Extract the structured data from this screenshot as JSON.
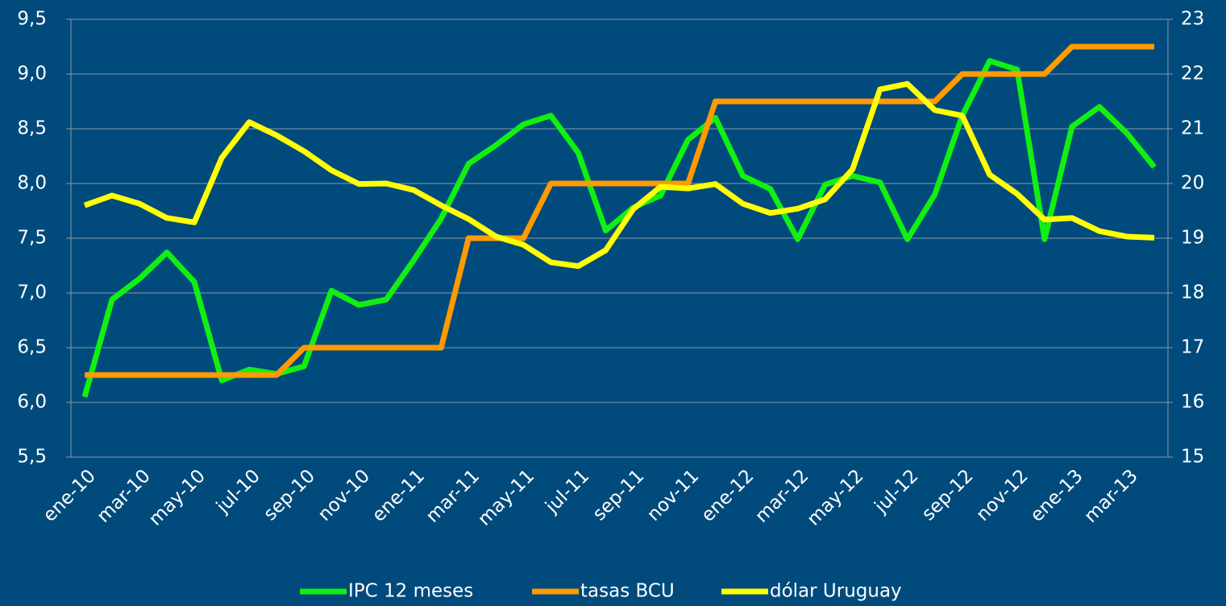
{
  "chart_data": {
    "type": "line",
    "categories": [
      "ene-10",
      null,
      "mar-10",
      null,
      "may-10",
      null,
      "jul-10",
      null,
      "sep-10",
      null,
      "nov-10",
      null,
      "ene-11",
      null,
      "mar-11",
      null,
      "may-11",
      null,
      "jul-11",
      null,
      "sep-11",
      null,
      "nov-11",
      null,
      "ene-12",
      null,
      "mar-12",
      null,
      "may-12",
      null,
      "jul-12",
      null,
      "sep-12",
      null,
      "nov-12",
      null,
      "ene-13",
      null,
      "mar-13",
      null
    ],
    "series": [
      {
        "name": "IPC 12 meses",
        "color": "#11f011",
        "axis": "y",
        "values": [
          6.05,
          6.94,
          7.13,
          7.37,
          7.1,
          6.2,
          6.3,
          6.26,
          6.33,
          7.02,
          6.89,
          6.94,
          7.3,
          7.68,
          8.18,
          8.35,
          8.54,
          8.62,
          8.28,
          7.57,
          7.78,
          7.89,
          8.4,
          8.6,
          8.07,
          7.95,
          7.49,
          7.99,
          8.07,
          8.01,
          7.49,
          7.9,
          8.62,
          9.12,
          9.04,
          7.49,
          8.52,
          8.7,
          8.46,
          8.15
        ]
      },
      {
        "name": "tasas BCU",
        "color": "#ff9a00",
        "axis": "y2",
        "values": [
          16.5,
          16.5,
          16.5,
          16.5,
          16.5,
          16.5,
          16.5,
          16.5,
          17,
          17,
          17,
          17,
          17,
          17,
          19,
          19,
          19,
          20,
          20,
          20,
          20,
          20,
          20,
          21.5,
          21.5,
          21.5,
          21.5,
          21.5,
          21.5,
          21.5,
          21.5,
          21.5,
          22,
          22,
          22,
          22,
          22.5,
          22.5,
          22.5,
          22.5
        ]
      },
      {
        "name": "dólar Uruguay",
        "color": "#ffff00",
        "axis": "y2",
        "values": [
          19.6,
          19.78,
          19.63,
          19.37,
          19.29,
          20.47,
          21.12,
          20.88,
          20.59,
          20.24,
          19.99,
          20.0,
          19.88,
          19.6,
          19.35,
          19.03,
          18.88,
          18.56,
          18.49,
          18.78,
          19.53,
          19.94,
          19.91,
          19.99,
          19.63,
          19.46,
          19.54,
          19.71,
          20.26,
          21.72,
          21.82,
          21.34,
          21.24,
          20.16,
          19.81,
          19.34,
          19.37,
          19.13,
          19.03,
          19.01
        ]
      }
    ],
    "ylim": [
      5.5,
      9.5
    ],
    "yticks": [
      {
        "value": 5.5,
        "label": "5,5"
      },
      {
        "value": 6,
        "label": "6,0"
      },
      {
        "value": 6.5,
        "label": "6,5"
      },
      {
        "value": 7,
        "label": "7,0"
      },
      {
        "value": 7.5,
        "label": "7,5"
      },
      {
        "value": 8,
        "label": "8,0"
      },
      {
        "value": 8.5,
        "label": "8,5"
      },
      {
        "value": 9,
        "label": "9,0"
      },
      {
        "value": 9.5,
        "label": "9,5"
      }
    ],
    "y2lim": [
      15,
      23
    ],
    "y2ticks": [
      15,
      16,
      17,
      18,
      19,
      20,
      21,
      22,
      23
    ],
    "grid": true,
    "legend": "bottom"
  }
}
